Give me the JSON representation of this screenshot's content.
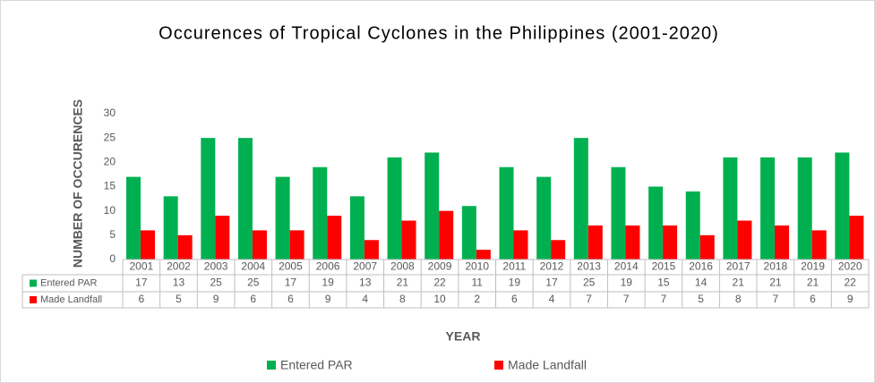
{
  "chart_data": {
    "type": "bar",
    "title": "Occurences of Tropical Cyclones in the Philippines (2001-2020)",
    "x_label": "YEAR",
    "y_label": "NUMBER OF OCCURENCES",
    "categories": [
      "2001",
      "2002",
      "2003",
      "2004",
      "2005",
      "2006",
      "2007",
      "2008",
      "2009",
      "2010",
      "2011",
      "2012",
      "2013",
      "2014",
      "2015",
      "2016",
      "2017",
      "2018",
      "2019",
      "2020"
    ],
    "series": [
      {
        "name": "Entered PAR",
        "color": "#00b050",
        "values": [
          17,
          13,
          25,
          25,
          17,
          19,
          13,
          21,
          22,
          11,
          19,
          17,
          25,
          19,
          15,
          14,
          21,
          21,
          21,
          22
        ]
      },
      {
        "name": "Made Landfall",
        "color": "#ff0000",
        "values": [
          6,
          5,
          9,
          6,
          6,
          9,
          4,
          8,
          10,
          2,
          6,
          4,
          7,
          7,
          7,
          5,
          8,
          7,
          6,
          9
        ]
      }
    ],
    "ylim": [
      0,
      30
    ],
    "yticks": [
      0,
      5,
      10,
      15,
      20,
      25,
      30
    ],
    "grid": false,
    "legend": "bottom"
  }
}
